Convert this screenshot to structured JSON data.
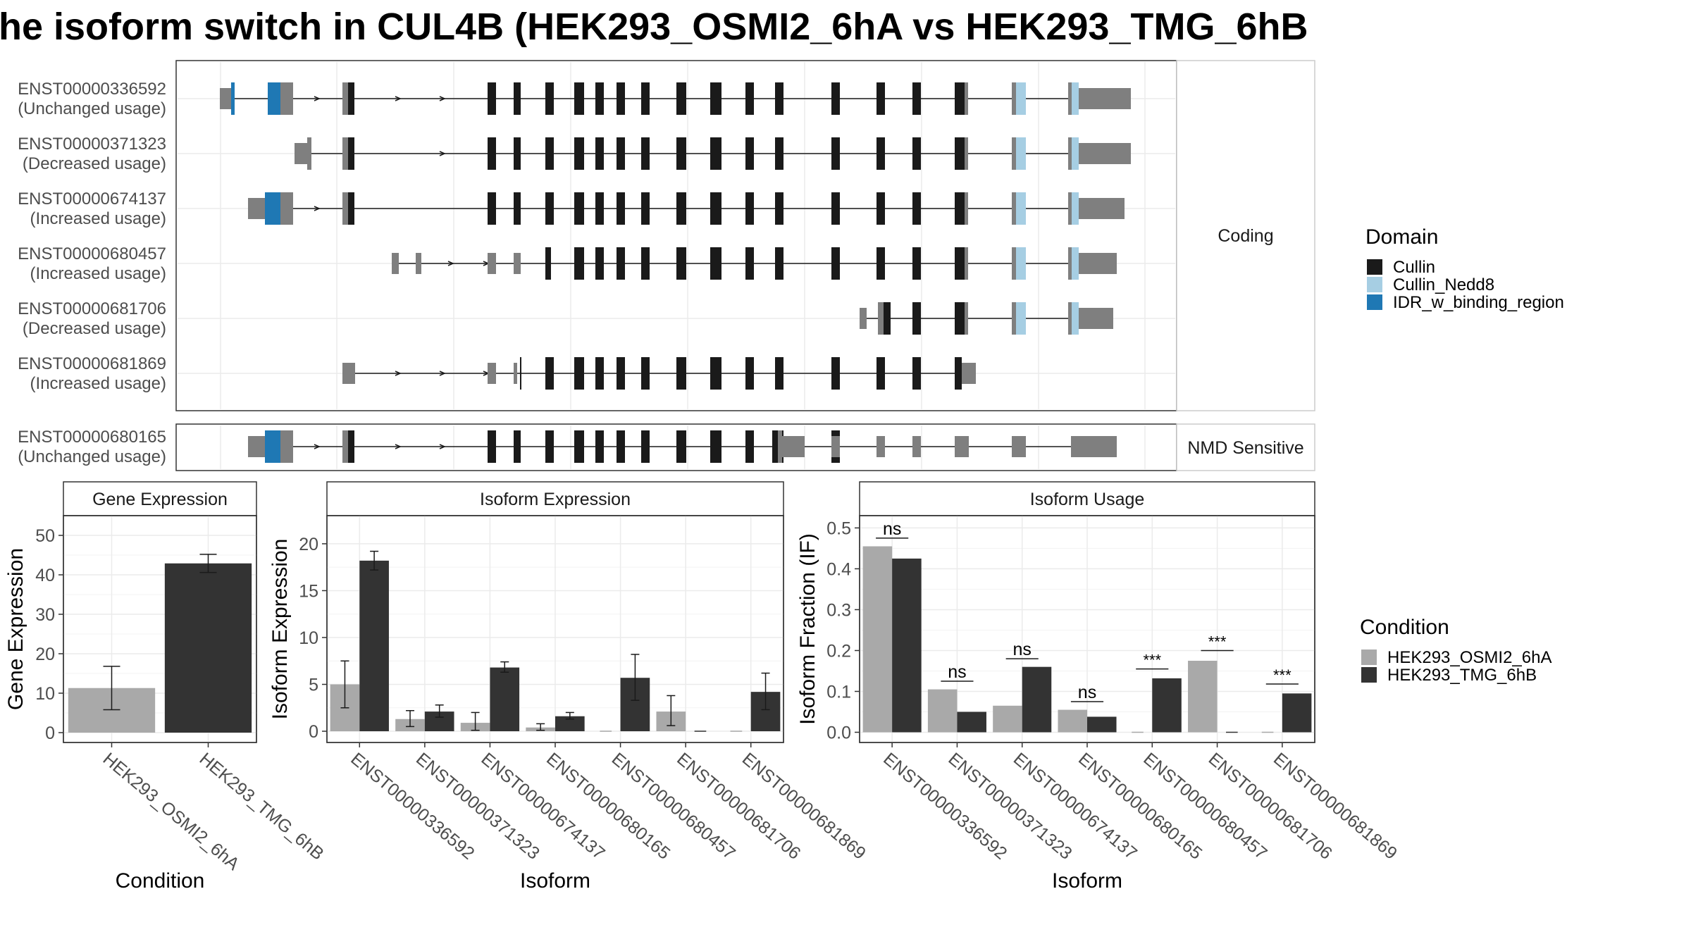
{
  "title": "he isoform switch in CUL4B (HEK293_OSMI2_6hA vs HEK293_TMG_6hB",
  "colors": {
    "Cullin": "#1a1a1a",
    "Cullin_Nedd8": "#a6cee3",
    "IDR_w_binding_region": "#1f78b4",
    "noncoding": "#7f7f7f",
    "HEK293_OSMI2_6hA": "#a9a9a9",
    "HEK293_TMG_6hB": "#333333"
  },
  "structure": {
    "coding_label": "Coding",
    "nmd_label": "NMD Sensitive",
    "domain_legend_title": "Domain",
    "domains": [
      "Cullin",
      "Cullin_Nedd8",
      "IDR_w_binding_region"
    ],
    "transcripts": [
      {
        "id": "ENST00000336592",
        "usage": "(Unchanged usage)",
        "group": "coding"
      },
      {
        "id": "ENST00000371323",
        "usage": "(Decreased usage)",
        "group": "coding"
      },
      {
        "id": "ENST00000674137",
        "usage": "(Increased usage)",
        "group": "coding"
      },
      {
        "id": "ENST00000680457",
        "usage": "(Increased usage)",
        "group": "coding"
      },
      {
        "id": "ENST00000681706",
        "usage": "(Decreased usage)",
        "group": "coding"
      },
      {
        "id": "ENST00000681869",
        "usage": "(Increased usage)",
        "group": "coding"
      },
      {
        "id": "ENST00000680165",
        "usage": "(Unchanged usage)",
        "group": "nmd"
      }
    ]
  },
  "condition_legend_title": "Condition",
  "conditions": [
    "HEK293_OSMI2_6hA",
    "HEK293_TMG_6hB"
  ],
  "chart_data": [
    {
      "type": "bar",
      "title": "Gene Expression",
      "xlabel": "Condition",
      "ylabel": "Gene Expression",
      "categories": [
        "HEK293_OSMI2_6hA",
        "HEK293_TMG_6hB"
      ],
      "values": [
        11.3,
        42.9
      ],
      "errors": [
        [
          5.8,
          16.8
        ],
        [
          40.6,
          45.2
        ]
      ],
      "ylim": [
        -2.5,
        55
      ],
      "yticks": [
        0,
        10,
        20,
        30,
        40,
        50
      ]
    },
    {
      "type": "bar",
      "title": "Isoform Expression",
      "xlabel": "Isoform",
      "ylabel": "Isoform Expression",
      "categories": [
        "ENST00000336592",
        "ENST00000371323",
        "ENST00000674137",
        "ENST00000680165",
        "ENST00000680457",
        "ENST00000681706",
        "ENST00000681869"
      ],
      "series": [
        {
          "name": "HEK293_OSMI2_6hA",
          "values": [
            5.0,
            1.3,
            0.9,
            0.4,
            0.0,
            2.1,
            0.0
          ],
          "errors": [
            [
              2.5,
              7.5
            ],
            [
              0.5,
              2.2
            ],
            [
              0.1,
              2.0
            ],
            [
              0.1,
              0.8
            ],
            null,
            [
              0.6,
              3.8
            ],
            null
          ]
        },
        {
          "name": "HEK293_TMG_6hB",
          "values": [
            18.2,
            2.1,
            6.8,
            1.6,
            5.7,
            0.0,
            4.2
          ],
          "errors": [
            [
              17.2,
              19.2
            ],
            [
              1.5,
              2.8
            ],
            [
              6.3,
              7.4
            ],
            [
              1.3,
              2.0
            ],
            [
              3.3,
              8.2
            ],
            null,
            [
              2.3,
              6.2
            ]
          ]
        }
      ],
      "ylim": [
        -1.2,
        23
      ],
      "yticks": [
        0,
        5,
        10,
        15,
        20
      ]
    },
    {
      "type": "bar",
      "title": "Isoform Usage",
      "xlabel": "Isoform",
      "ylabel": "Isoform Fraction (IF)",
      "categories": [
        "ENST00000336592",
        "ENST00000371323",
        "ENST00000674137",
        "ENST00000680165",
        "ENST00000680457",
        "ENST00000681706",
        "ENST00000681869"
      ],
      "series": [
        {
          "name": "HEK293_OSMI2_6hA",
          "values": [
            0.455,
            0.105,
            0.065,
            0.055,
            0.0,
            0.175,
            0.0
          ]
        },
        {
          "name": "HEK293_TMG_6hB",
          "values": [
            0.425,
            0.05,
            0.16,
            0.038,
            0.132,
            0.0,
            0.095
          ]
        }
      ],
      "significance": [
        {
          "label": "ns",
          "level": 0.475
        },
        {
          "label": "ns",
          "level": 0.125
        },
        {
          "label": "ns",
          "level": 0.18
        },
        {
          "label": "ns",
          "level": 0.075
        },
        {
          "label": "***",
          "level": 0.155
        },
        {
          "label": "***",
          "level": 0.2
        },
        {
          "label": "***",
          "level": 0.118
        }
      ],
      "ylim": [
        -0.025,
        0.53
      ],
      "yticks": [
        0.0,
        0.1,
        0.2,
        0.3,
        0.4,
        0.5
      ]
    }
  ]
}
